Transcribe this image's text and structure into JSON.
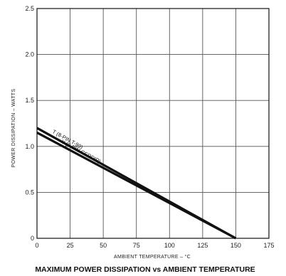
{
  "chart_data": {
    "type": "line",
    "title": "MAXIMUM POWER DISSIPATION vs AMBIENT TEMPERATURE",
    "xlabel": "AMBIENT TEMPERATURE – °C",
    "ylabel": "POWER DISSIPATION – WATTS",
    "xlim": [
      0,
      175
    ],
    "ylim": [
      0,
      2.5
    ],
    "x_ticks": [
      0,
      25,
      50,
      75,
      100,
      125,
      150,
      175
    ],
    "x_tick_labels": [
      "0",
      "25",
      "50",
      "75",
      "100",
      "125",
      "150",
      "175"
    ],
    "y_ticks": [
      0,
      0.5,
      1.0,
      1.5,
      2.0,
      2.5
    ],
    "y_tick_labels": [
      "0",
      "0.5",
      "1.0",
      "1.5",
      "2.0",
      "2.5"
    ],
    "grid": true,
    "series": [
      {
        "name": "T (8-PIN T-99)",
        "x": [
          0,
          150
        ],
        "y": [
          1.2,
          0.0
        ],
        "color": "#111111"
      },
      {
        "name": "Y (8-PIN CERDIP)",
        "x": [
          0,
          150
        ],
        "y": [
          1.15,
          0.0
        ],
        "color": "#111111"
      }
    ]
  }
}
